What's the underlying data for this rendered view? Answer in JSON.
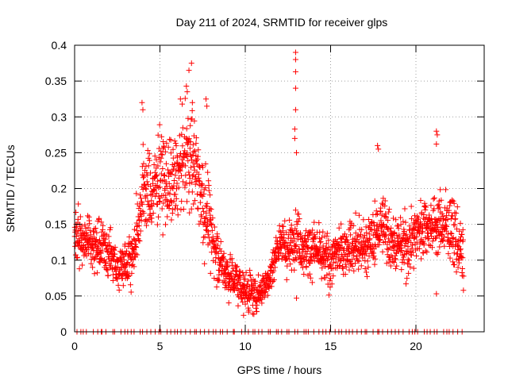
{
  "chart_data": {
    "type": "scatter",
    "title": "Day 211 of 2024, SRMTID for receiver glps",
    "xlabel": "GPS time / hours",
    "ylabel": "SRMTID / TECUs",
    "xlim": [
      0,
      24
    ],
    "ylim": [
      0,
      0.4
    ],
    "x_ticks": [
      0,
      5,
      10,
      15,
      20
    ],
    "x_tick_labels": [
      "0",
      "5",
      "10",
      "15",
      "20"
    ],
    "y_ticks": [
      0,
      0.05,
      0.1,
      0.15,
      0.2,
      0.25,
      0.3,
      0.35,
      0.4
    ],
    "y_tick_labels": [
      "0",
      "0.05",
      "0.1",
      "0.15",
      "0.2",
      "0.25",
      "0.3",
      "0.35",
      "0.4"
    ],
    "grid": true,
    "marker": "+",
    "series": [
      {
        "name": "SRMTID",
        "color": "#ff0000",
        "trend": [
          {
            "x": 0.0,
            "y": 0.13
          },
          {
            "x": 0.5,
            "y": 0.13
          },
          {
            "x": 1.0,
            "y": 0.12
          },
          {
            "x": 1.5,
            "y": 0.12
          },
          {
            "x": 2.0,
            "y": 0.11
          },
          {
            "x": 2.5,
            "y": 0.09
          },
          {
            "x": 3.0,
            "y": 0.1
          },
          {
            "x": 3.5,
            "y": 0.11
          },
          {
            "x": 4.0,
            "y": 0.2
          },
          {
            "x": 4.5,
            "y": 0.19
          },
          {
            "x": 5.0,
            "y": 0.22
          },
          {
            "x": 5.5,
            "y": 0.2
          },
          {
            "x": 6.0,
            "y": 0.21
          },
          {
            "x": 6.5,
            "y": 0.25
          },
          {
            "x": 7.0,
            "y": 0.24
          },
          {
            "x": 7.5,
            "y": 0.19
          },
          {
            "x": 8.0,
            "y": 0.14
          },
          {
            "x": 8.5,
            "y": 0.1
          },
          {
            "x": 9.0,
            "y": 0.08
          },
          {
            "x": 9.5,
            "y": 0.07
          },
          {
            "x": 10.0,
            "y": 0.06
          },
          {
            "x": 10.5,
            "y": 0.05
          },
          {
            "x": 11.0,
            "y": 0.06
          },
          {
            "x": 11.5,
            "y": 0.08
          },
          {
            "x": 12.0,
            "y": 0.13
          },
          {
            "x": 12.5,
            "y": 0.11
          },
          {
            "x": 13.0,
            "y": 0.14
          },
          {
            "x": 13.5,
            "y": 0.11
          },
          {
            "x": 14.0,
            "y": 0.12
          },
          {
            "x": 14.5,
            "y": 0.1
          },
          {
            "x": 15.0,
            "y": 0.1
          },
          {
            "x": 15.5,
            "y": 0.11
          },
          {
            "x": 16.0,
            "y": 0.12
          },
          {
            "x": 16.5,
            "y": 0.12
          },
          {
            "x": 17.0,
            "y": 0.12
          },
          {
            "x": 17.5,
            "y": 0.13
          },
          {
            "x": 18.0,
            "y": 0.15
          },
          {
            "x": 18.5,
            "y": 0.13
          },
          {
            "x": 19.0,
            "y": 0.12
          },
          {
            "x": 19.5,
            "y": 0.12
          },
          {
            "x": 20.0,
            "y": 0.14
          },
          {
            "x": 20.5,
            "y": 0.15
          },
          {
            "x": 21.0,
            "y": 0.15
          },
          {
            "x": 21.5,
            "y": 0.15
          },
          {
            "x": 22.0,
            "y": 0.15
          },
          {
            "x": 22.5,
            "y": 0.12
          },
          {
            "x": 22.8,
            "y": 0.1
          }
        ],
        "spread": [
          {
            "x": 0.0,
            "s": 0.03
          },
          {
            "x": 3.0,
            "s": 0.03
          },
          {
            "x": 4.0,
            "s": 0.05
          },
          {
            "x": 7.5,
            "s": 0.06
          },
          {
            "x": 8.5,
            "s": 0.03
          },
          {
            "x": 11.5,
            "s": 0.02
          },
          {
            "x": 12.0,
            "s": 0.03
          },
          {
            "x": 22.8,
            "s": 0.04
          }
        ],
        "x_range": [
          0,
          22.8
        ],
        "point_count": 2000,
        "outliers": [
          {
            "x": 12.95,
            "y": 0.39
          },
          {
            "x": 12.95,
            "y": 0.38
          },
          {
            "x": 12.95,
            "y": 0.363
          },
          {
            "x": 12.95,
            "y": 0.34
          },
          {
            "x": 12.95,
            "y": 0.31
          },
          {
            "x": 12.9,
            "y": 0.283
          },
          {
            "x": 12.9,
            "y": 0.27
          },
          {
            "x": 13.0,
            "y": 0.25
          },
          {
            "x": 6.85,
            "y": 0.375
          },
          {
            "x": 6.7,
            "y": 0.365
          },
          {
            "x": 6.55,
            "y": 0.343
          },
          {
            "x": 6.6,
            "y": 0.335
          },
          {
            "x": 6.2,
            "y": 0.325
          },
          {
            "x": 6.9,
            "y": 0.32
          },
          {
            "x": 3.95,
            "y": 0.32
          },
          {
            "x": 4.0,
            "y": 0.31
          },
          {
            "x": 7.7,
            "y": 0.325
          },
          {
            "x": 7.75,
            "y": 0.315
          },
          {
            "x": 17.75,
            "y": 0.26
          },
          {
            "x": 17.8,
            "y": 0.255
          },
          {
            "x": 21.2,
            "y": 0.28
          },
          {
            "x": 21.25,
            "y": 0.275
          },
          {
            "x": 21.2,
            "y": 0.262
          },
          {
            "x": 21.2,
            "y": 0.053
          },
          {
            "x": 13.0,
            "y": 0.047
          },
          {
            "x": 9.9,
            "y": 0.023
          }
        ],
        "zero_markers_x_range": [
          0,
          22.8
        ],
        "zero_marker_count": 100
      }
    ]
  }
}
